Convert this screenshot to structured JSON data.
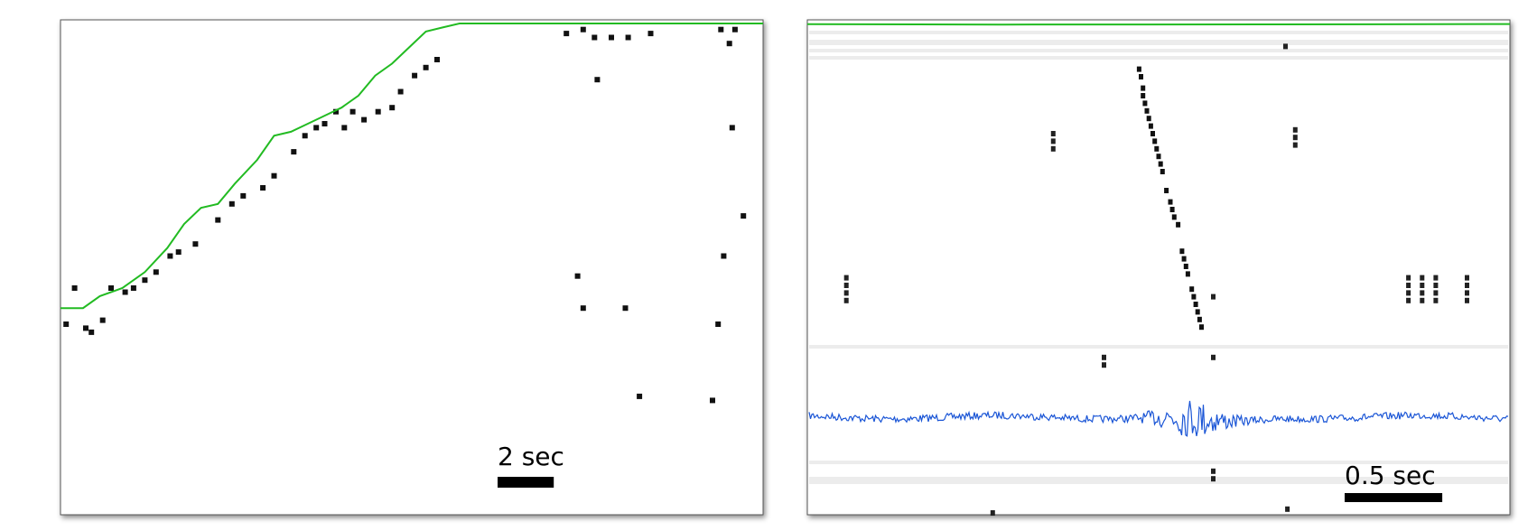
{
  "chart_data": [
    {
      "type": "raster",
      "scale_bar": {
        "label": "2 sec",
        "value": 2,
        "unit": "sec"
      },
      "colors": {
        "trajectory": "#22bb22",
        "spikes": "#000000",
        "background": "#ffffff"
      },
      "time_range": [
        0,
        25
      ],
      "position_range": [
        0,
        1
      ],
      "trajectory": {
        "t": [
          0,
          0.8,
          1.4,
          2.2,
          3.0,
          3.8,
          4.4,
          5.0,
          5.6,
          6.2,
          7.0,
          7.6,
          8.2,
          8.8,
          9.4,
          10.0,
          10.6,
          11.2,
          11.8,
          12.4,
          13.0,
          13.6,
          14.2,
          25.0
        ],
        "pos": [
          0.29,
          0.29,
          0.32,
          0.34,
          0.38,
          0.44,
          0.5,
          0.54,
          0.55,
          0.6,
          0.66,
          0.72,
          0.73,
          0.75,
          0.77,
          0.79,
          0.82,
          0.87,
          0.9,
          0.94,
          0.98,
          0.99,
          1.0,
          1.0
        ]
      },
      "spikes": [
        {
          "t": 0.2,
          "pos": 0.25
        },
        {
          "t": 0.5,
          "pos": 0.34
        },
        {
          "t": 0.9,
          "pos": 0.24
        },
        {
          "t": 1.1,
          "pos": 0.23
        },
        {
          "t": 1.5,
          "pos": 0.26
        },
        {
          "t": 1.8,
          "pos": 0.34
        },
        {
          "t": 2.3,
          "pos": 0.33
        },
        {
          "t": 2.6,
          "pos": 0.34
        },
        {
          "t": 3.0,
          "pos": 0.36
        },
        {
          "t": 3.4,
          "pos": 0.38
        },
        {
          "t": 3.9,
          "pos": 0.42
        },
        {
          "t": 4.2,
          "pos": 0.43
        },
        {
          "t": 4.8,
          "pos": 0.45
        },
        {
          "t": 5.6,
          "pos": 0.51
        },
        {
          "t": 6.1,
          "pos": 0.55
        },
        {
          "t": 6.5,
          "pos": 0.57
        },
        {
          "t": 7.2,
          "pos": 0.59
        },
        {
          "t": 7.6,
          "pos": 0.62
        },
        {
          "t": 8.3,
          "pos": 0.68
        },
        {
          "t": 8.7,
          "pos": 0.72
        },
        {
          "t": 9.1,
          "pos": 0.74
        },
        {
          "t": 9.4,
          "pos": 0.75
        },
        {
          "t": 9.8,
          "pos": 0.78
        },
        {
          "t": 10.1,
          "pos": 0.74
        },
        {
          "t": 10.4,
          "pos": 0.78
        },
        {
          "t": 10.8,
          "pos": 0.76
        },
        {
          "t": 11.3,
          "pos": 0.78
        },
        {
          "t": 11.8,
          "pos": 0.79
        },
        {
          "t": 12.1,
          "pos": 0.83
        },
        {
          "t": 12.6,
          "pos": 0.87
        },
        {
          "t": 13.0,
          "pos": 0.89
        },
        {
          "t": 13.4,
          "pos": 0.91
        },
        {
          "t": 18.0,
          "pos": 0.975
        },
        {
          "t": 18.6,
          "pos": 0.985
        },
        {
          "t": 19.0,
          "pos": 0.965
        },
        {
          "t": 19.6,
          "pos": 0.965
        },
        {
          "t": 20.2,
          "pos": 0.965
        },
        {
          "t": 21.0,
          "pos": 0.975
        },
        {
          "t": 23.5,
          "pos": 0.985
        },
        {
          "t": 24.0,
          "pos": 0.985
        },
        {
          "t": 19.1,
          "pos": 0.86
        },
        {
          "t": 23.8,
          "pos": 0.95
        },
        {
          "t": 23.9,
          "pos": 0.74
        },
        {
          "t": 24.3,
          "pos": 0.52
        },
        {
          "t": 18.4,
          "pos": 0.37
        },
        {
          "t": 18.6,
          "pos": 0.29
        },
        {
          "t": 20.1,
          "pos": 0.29
        },
        {
          "t": 23.6,
          "pos": 0.42
        },
        {
          "t": 23.4,
          "pos": 0.25
        },
        {
          "t": 20.6,
          "pos": 0.07
        },
        {
          "t": 23.2,
          "pos": 0.06
        }
      ]
    },
    {
      "type": "raster",
      "scale_bar": {
        "label": "0.5 sec",
        "value": 0.5,
        "unit": "sec"
      },
      "colors": {
        "trajectory": "#22bb22",
        "spikes": "#000000",
        "lfp": "#1a55d6",
        "background": "#ffffff"
      },
      "time_range": [
        0,
        3.6
      ],
      "cell_range": [
        0,
        100
      ],
      "trajectory": {
        "t": [
          0,
          1.0,
          2.4,
          3.6
        ],
        "cell": [
          0.8,
          1.2,
          1.0,
          0.6
        ]
      },
      "sequence": [
        {
          "t": 1.7,
          "cell": 8
        },
        {
          "t": 1.71,
          "cell": 10
        },
        {
          "t": 1.72,
          "cell": 13
        },
        {
          "t": 1.72,
          "cell": 15
        },
        {
          "t": 1.73,
          "cell": 17
        },
        {
          "t": 1.74,
          "cell": 19
        },
        {
          "t": 1.75,
          "cell": 21
        },
        {
          "t": 1.76,
          "cell": 23
        },
        {
          "t": 1.77,
          "cell": 25
        },
        {
          "t": 1.78,
          "cell": 27
        },
        {
          "t": 1.79,
          "cell": 29
        },
        {
          "t": 1.8,
          "cell": 31
        },
        {
          "t": 1.81,
          "cell": 33
        },
        {
          "t": 1.82,
          "cell": 35
        },
        {
          "t": 1.84,
          "cell": 40
        },
        {
          "t": 1.86,
          "cell": 43
        },
        {
          "t": 1.87,
          "cell": 45
        },
        {
          "t": 1.88,
          "cell": 47
        },
        {
          "t": 1.9,
          "cell": 49
        },
        {
          "t": 1.92,
          "cell": 56
        },
        {
          "t": 1.93,
          "cell": 58
        },
        {
          "t": 1.94,
          "cell": 60
        },
        {
          "t": 1.95,
          "cell": 62
        },
        {
          "t": 1.97,
          "cell": 66
        },
        {
          "t": 1.98,
          "cell": 68
        },
        {
          "t": 1.99,
          "cell": 70
        },
        {
          "t": 2.0,
          "cell": 72
        },
        {
          "t": 2.01,
          "cell": 74
        },
        {
          "t": 2.02,
          "cell": 76
        }
      ],
      "column_spikes": [
        {
          "t": 0.2,
          "cells": [
            63,
            65,
            67,
            69
          ]
        },
        {
          "t": 1.26,
          "cells": [
            25,
            27,
            29
          ]
        },
        {
          "t": 2.5,
          "cells": [
            24,
            26,
            28
          ]
        },
        {
          "t": 3.08,
          "cells": [
            63,
            65,
            67,
            69
          ]
        },
        {
          "t": 3.15,
          "cells": [
            63,
            65,
            67,
            69
          ]
        },
        {
          "t": 3.22,
          "cells": [
            63,
            65,
            67,
            69
          ]
        },
        {
          "t": 3.38,
          "cells": [
            63,
            65,
            67,
            69
          ]
        },
        {
          "t": 1.52,
          "cells": [
            84,
            86
          ]
        },
        {
          "t": 2.08,
          "cells": [
            68,
            84,
            114,
            116
          ]
        },
        {
          "t": 0.95,
          "cells": [
            125
          ]
        },
        {
          "t": 2.46,
          "cells": [
            124
          ]
        },
        {
          "t": 2.45,
          "cells": [
            2
          ]
        }
      ],
      "lfp_ripple_center": 1.97
    }
  ]
}
